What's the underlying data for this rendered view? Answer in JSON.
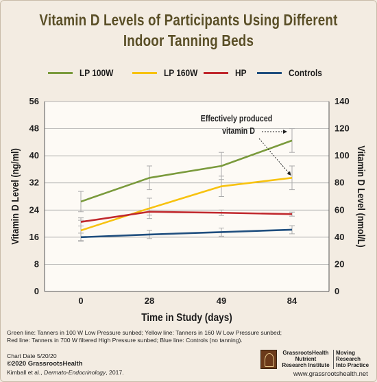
{
  "title_line1": "Vitamin D Levels of Participants Using Different",
  "title_line2": "Indoor Tanning Beds",
  "chart_data": {
    "type": "line",
    "title": "Vitamin D Levels of Participants Using Different Indoor Tanning Beds",
    "xlabel": "Time in Study (days)",
    "ylabel": "Vitamin D Level (ng/ml)",
    "y2label": "Vitamin D Level (nmol/L)",
    "categories": [
      "0",
      "28",
      "49",
      "84"
    ],
    "ylim": [
      0,
      56
    ],
    "yticks": [
      "0",
      "8",
      "16",
      "24",
      "32",
      "40",
      "48",
      "56"
    ],
    "y2lim": [
      0,
      140
    ],
    "y2ticks": [
      "0",
      "20",
      "40",
      "60",
      "80",
      "100",
      "120",
      "140"
    ],
    "grid": true,
    "legend_position": "top",
    "series": [
      {
        "name": "LP 100W",
        "color": "#7a9a3c",
        "values": [
          26.5,
          33.5,
          37,
          44.5
        ],
        "err": [
          3.0,
          3.5,
          4.0,
          3.5
        ]
      },
      {
        "name": "LP 160W",
        "color": "#f7c20f",
        "values": [
          18,
          24.5,
          31,
          33.5
        ],
        "err": [
          3.0,
          3.0,
          3.0,
          3.5
        ]
      },
      {
        "name": "HP",
        "color": "#c0282d",
        "values": [
          20.5,
          23.5,
          23.2,
          22.8
        ],
        "err": [
          1.2,
          1.0,
          0.8,
          0.6
        ]
      },
      {
        "name": "Controls",
        "color": "#1f4e7e",
        "values": [
          16,
          16.8,
          17.5,
          18.2
        ],
        "err": [
          1.2,
          1.2,
          1.2,
          1.2
        ]
      }
    ],
    "annotation": {
      "line1": "Effectively produced",
      "line2": "vitamin D"
    }
  },
  "footnote_lines": [
    "Green line: Tanners in 100 W Low Pressure sunbed; Yellow line: Tanners in 160 W Low Pressure sunbed;",
    "Red line: Tanners in 700 W filtered High Pressure sunbed; Blue line: Controls (no tanning)."
  ],
  "chart_date": "Chart Date 5/20/20",
  "copyright": "©2020 GrassrootsHealth",
  "citation_prefix": "Kimball et al., ",
  "citation_journal": "Dermato-Endocrinology",
  "citation_suffix": ", 2017.",
  "brand": {
    "name_lines": [
      "GrassrootsHealth",
      "Nutrient",
      "Research Institute"
    ],
    "tag_lines": [
      "Moving",
      "Research",
      "Into Practice"
    ],
    "url": "www.grassrootshealth.net"
  }
}
